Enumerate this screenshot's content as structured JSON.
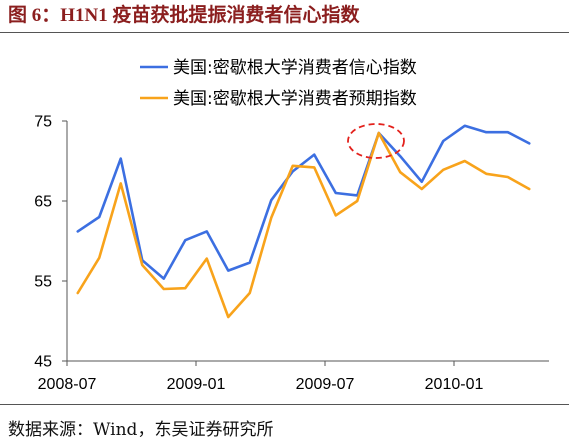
{
  "chart_data": {
    "type": "line",
    "title": "图 6：H1N1 疫苗获批提振消费者信心指数",
    "x": [
      "2008-07",
      "2008-08",
      "2008-09",
      "2008-10",
      "2008-11",
      "2008-12",
      "2009-01",
      "2009-02",
      "2009-03",
      "2009-04",
      "2009-05",
      "2009-06",
      "2009-07",
      "2009-08",
      "2009-09",
      "2009-10",
      "2009-11",
      "2009-12",
      "2010-01",
      "2010-02",
      "2010-03",
      "2010-04"
    ],
    "xticks": [
      "2008-07",
      "2009-01",
      "2009-07",
      "2010-01"
    ],
    "yticks": [
      45,
      55,
      65,
      75
    ],
    "ylim": [
      45,
      75
    ],
    "grid": false,
    "legend": "top-center",
    "series": [
      {
        "name": "美国:密歇根大学消费者信心指数",
        "color": "#3C6FE1",
        "values": [
          61.2,
          63.0,
          70.3,
          57.6,
          55.3,
          60.1,
          61.2,
          56.3,
          57.3,
          65.1,
          68.7,
          70.8,
          66.0,
          65.7,
          73.5,
          70.6,
          67.4,
          72.5,
          74.4,
          73.6,
          73.6,
          72.2
        ]
      },
      {
        "name": "美国:密歇根大学消费者预期指数",
        "color": "#F8A31B",
        "values": [
          53.5,
          57.9,
          67.2,
          57.0,
          54.0,
          54.1,
          57.8,
          50.5,
          53.5,
          62.9,
          69.4,
          69.2,
          63.2,
          65.0,
          73.5,
          68.6,
          66.5,
          68.9,
          70.0,
          68.4,
          68.0,
          66.5
        ]
      }
    ]
  },
  "source": {
    "text": "数据来源：Wind，东吴证券研究所"
  }
}
